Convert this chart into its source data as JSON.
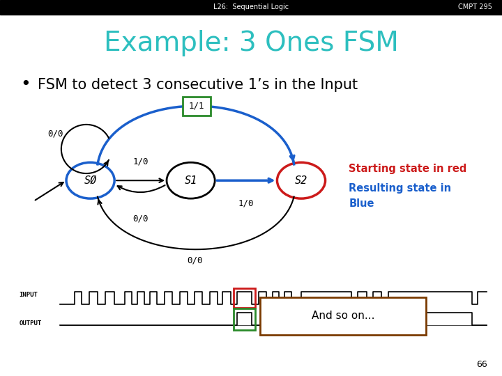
{
  "header_text_left": "L26:  Sequential Logic",
  "header_text_right": "CMPT 295",
  "header_bg": "#000000",
  "header_fg": "#ffffff",
  "title": "Example: 3 Ones FSM",
  "title_color": "#2dbfbf",
  "slide_bg": "#ffffff",
  "bullet_text": "FSM to detect 3 consecutive 1’s in the Input",
  "bullet_color": "#000000",
  "s0_color": "#1a5fcc",
  "s1_color": "#000000",
  "s2_color": "#cc1a1a",
  "annotation_red": "Starting state in red",
  "annotation_blue1": "Resulting state in",
  "annotation_blue2": "Blue",
  "annotation_red_color": "#cc1a1a",
  "annotation_blue_color": "#1a5fcc",
  "page_number": "66",
  "and_so_on_text": "And so on...",
  "and_so_on_box_color": "#7a3a00",
  "red_box_color": "#cc1a1a",
  "green_box_color": "#2a8a2a",
  "blue_arrow_color": "#1a5fcc"
}
